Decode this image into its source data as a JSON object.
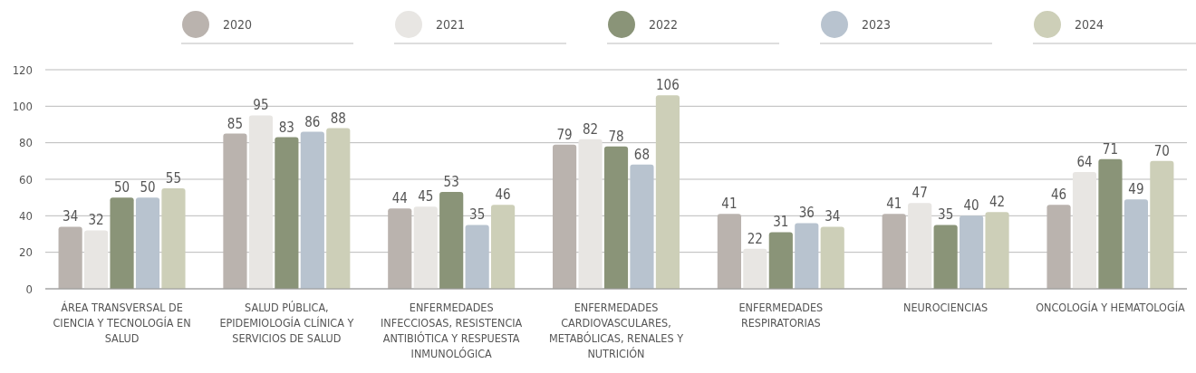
{
  "chart_data": {
    "type": "bar",
    "categories": [
      "ÁREA TRANSVERSAL DE CIENCIA Y TECNOLOGÍA EN SALUD",
      "SALUD PÚBLICA, EPIDEMIOLOGÍA CLÍNICA Y SERVICIOS DE SALUD",
      "ENFERMEDADES INFECCIOSAS, RESISTENCIA ANTIBIÓTICA Y RESPUESTA INMUNOLÓGICA",
      "ENFERMEDADES CARDIOVASCULARES, METABÓLICAS, RENALES Y NUTRICIÓN",
      "ENFERMEDADES RESPIRATORIAS",
      "NEUROCIENCIAS",
      "ONCOLOGÍA Y HEMATOLOGÍA"
    ],
    "series": [
      {
        "name": "2020",
        "color": "#bab3ae",
        "values": [
          34,
          85,
          44,
          79,
          41,
          41,
          46
        ]
      },
      {
        "name": "2021",
        "color": "#e8e6e3",
        "values": [
          32,
          95,
          45,
          82,
          22,
          47,
          64
        ]
      },
      {
        "name": "2022",
        "color": "#8a9478",
        "values": [
          50,
          83,
          53,
          78,
          31,
          35,
          71
        ]
      },
      {
        "name": "2023",
        "color": "#b8c3cf",
        "values": [
          50,
          86,
          35,
          68,
          36,
          40,
          49
        ]
      },
      {
        "name": "2024",
        "color": "#cdcfb8",
        "values": [
          55,
          88,
          46,
          106,
          34,
          42,
          70
        ]
      }
    ],
    "ylim": [
      0,
      120
    ],
    "yticks": [
      0,
      20,
      40,
      60,
      80,
      100,
      120
    ],
    "grid": "y",
    "legend": "top",
    "data_labels": true
  }
}
